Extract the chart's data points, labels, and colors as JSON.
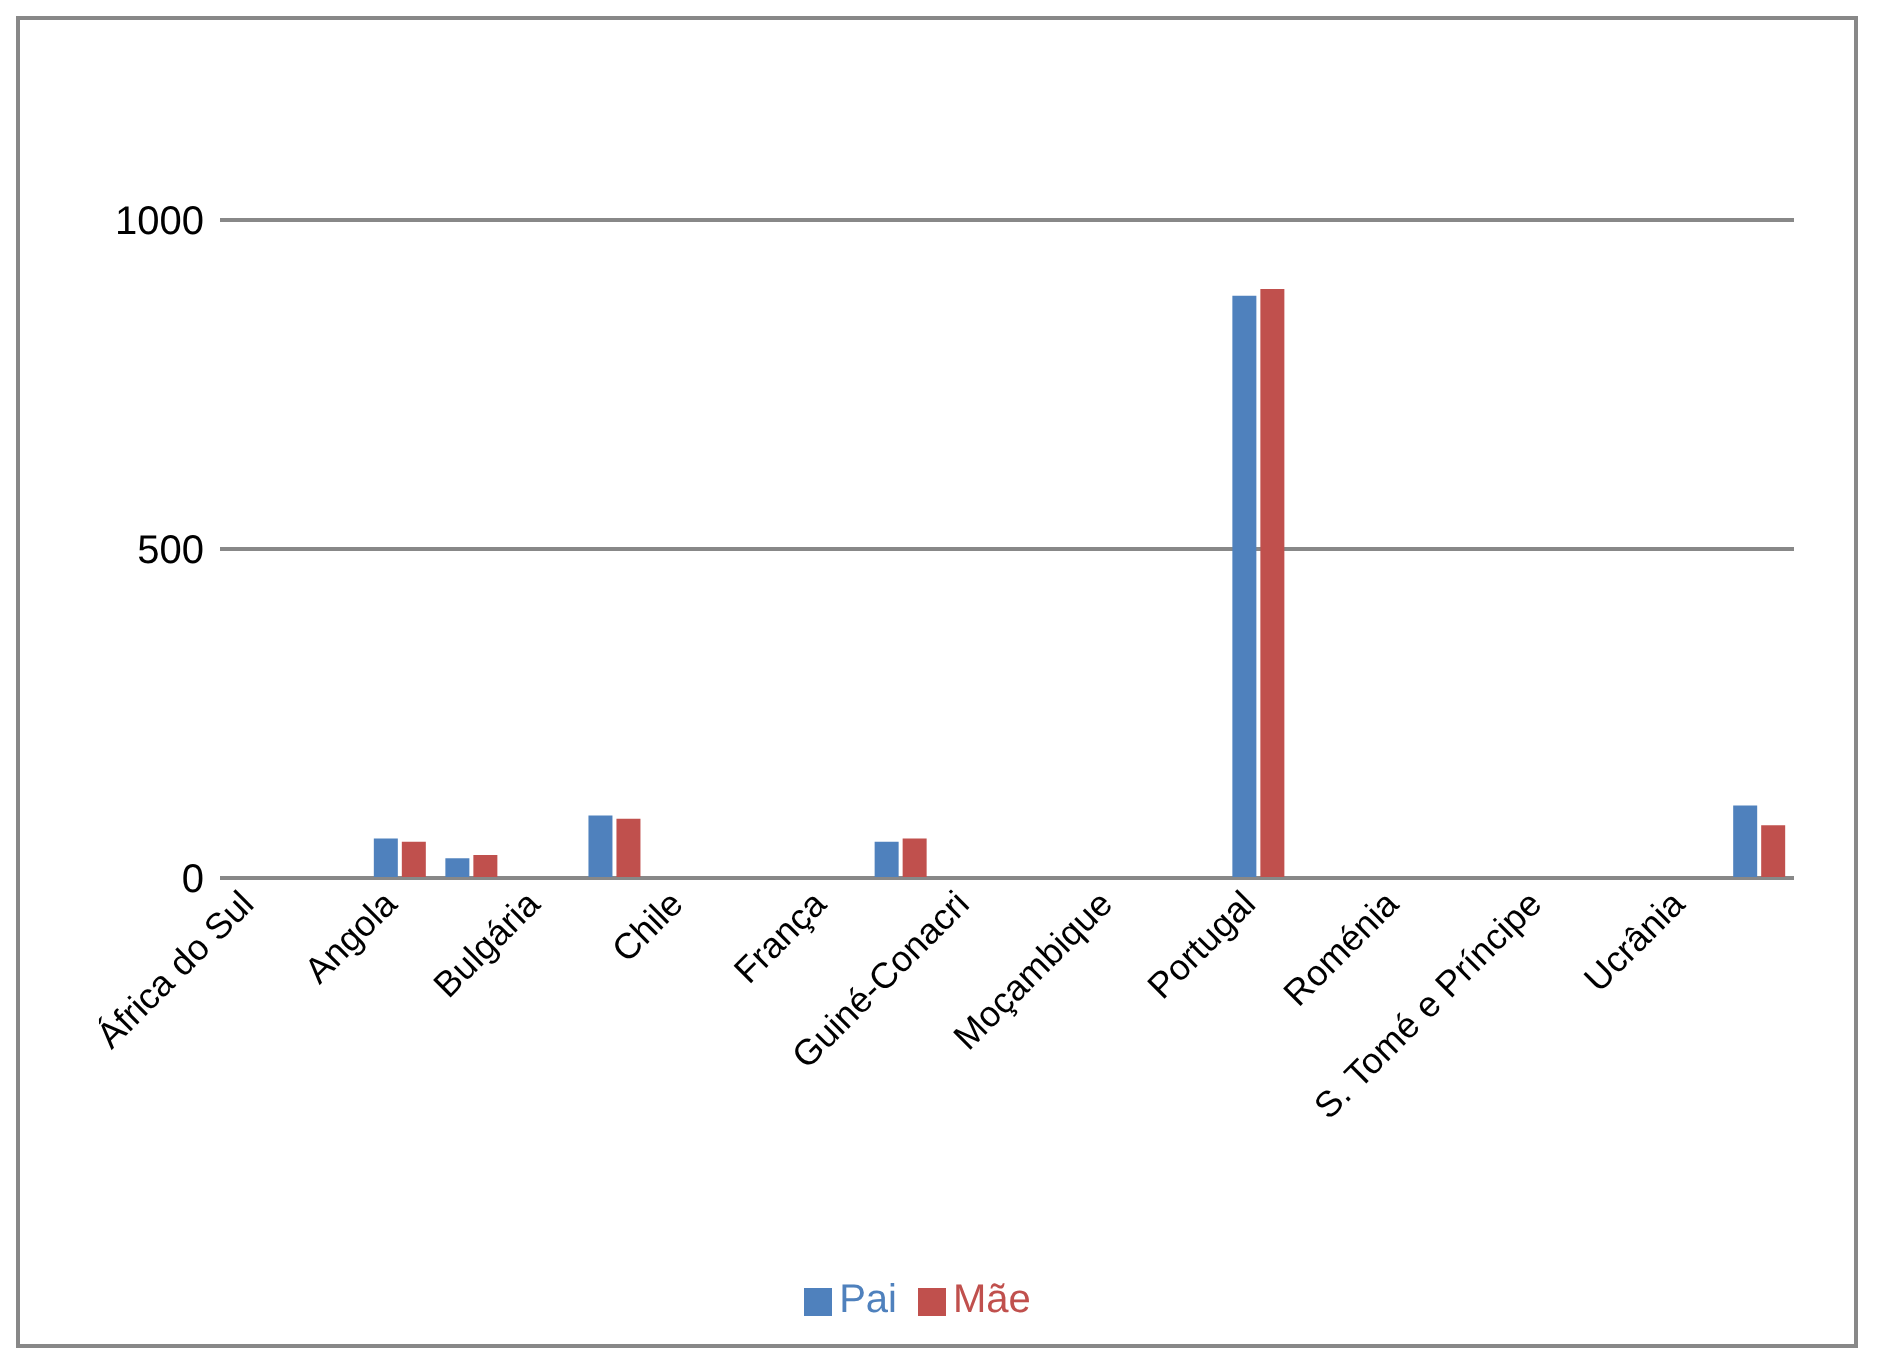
{
  "chart_data": {
    "type": "bar",
    "categories": [
      "África do Sul",
      null,
      "Angola",
      null,
      "Bulgária",
      null,
      "Chile",
      null,
      "França",
      null,
      "Guiné-Conacri",
      null,
      "Moçambique",
      null,
      "Portugal",
      null,
      "Roménia",
      null,
      "S. Tomé e Príncipe",
      null,
      "Ucrânia",
      null
    ],
    "series": [
      {
        "name": "Pai",
        "color": "#4f81bd",
        "values": [
          0,
          0,
          60,
          30,
          0,
          95,
          0,
          0,
          0,
          55,
          0,
          0,
          0,
          0,
          885,
          0,
          0,
          0,
          0,
          0,
          0,
          110
        ]
      },
      {
        "name": "Mãe",
        "color": "#c0504d",
        "values": [
          0,
          0,
          55,
          35,
          0,
          90,
          0,
          0,
          0,
          60,
          0,
          0,
          0,
          0,
          895,
          0,
          0,
          0,
          0,
          0,
          0,
          80
        ]
      }
    ],
    "ylim": [
      0,
      1000
    ],
    "yticks": [
      0,
      500,
      1000
    ],
    "grid": "y",
    "legend": "bottom"
  }
}
